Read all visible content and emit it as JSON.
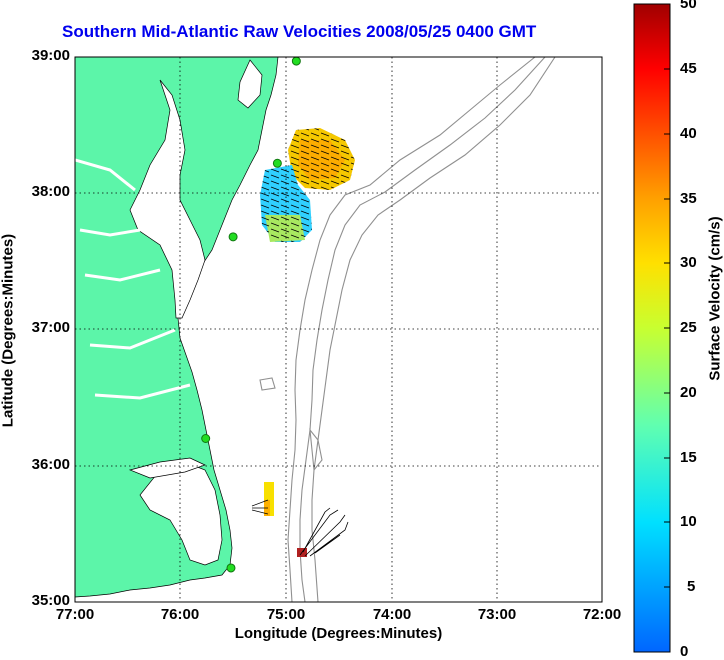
{
  "title": "Southern Mid-Atlantic Raw Velocities 2008/05/25 0400 GMT",
  "xlabel": "Longitude (Degrees:Minutes)",
  "ylabel": "Latitude (Degrees:Minutes)",
  "colorbar_label": "Surface Velocity (cm/s)",
  "x_ticks": [
    "77:00",
    "76:00",
    "75:00",
    "74:00",
    "73:00",
    "72:00"
  ],
  "y_ticks": [
    "39:00",
    "38:00",
    "37:00",
    "36:00",
    "35:00"
  ],
  "colorbar_ticks": [
    "50",
    "45",
    "40",
    "35",
    "30",
    "25",
    "20",
    "15",
    "10",
    "5",
    "0"
  ],
  "colors": {
    "land": "#5cf5a9",
    "title": "#0000ee",
    "bathymetry": "#909090",
    "station": "#22dd22"
  },
  "chart_data": {
    "type": "map",
    "xlim": [
      -77,
      -72
    ],
    "ylim": [
      35,
      39
    ],
    "grid": "dotted",
    "colorbar_range": [
      0,
      50
    ],
    "stations": [
      {
        "lon": -74.9,
        "lat": 38.97
      },
      {
        "lon": -75.08,
        "lat": 38.22
      },
      {
        "lon": -75.5,
        "lat": 37.68
      },
      {
        "lon": -75.76,
        "lat": 36.2
      },
      {
        "lon": -75.52,
        "lat": 35.25
      }
    ]
  }
}
